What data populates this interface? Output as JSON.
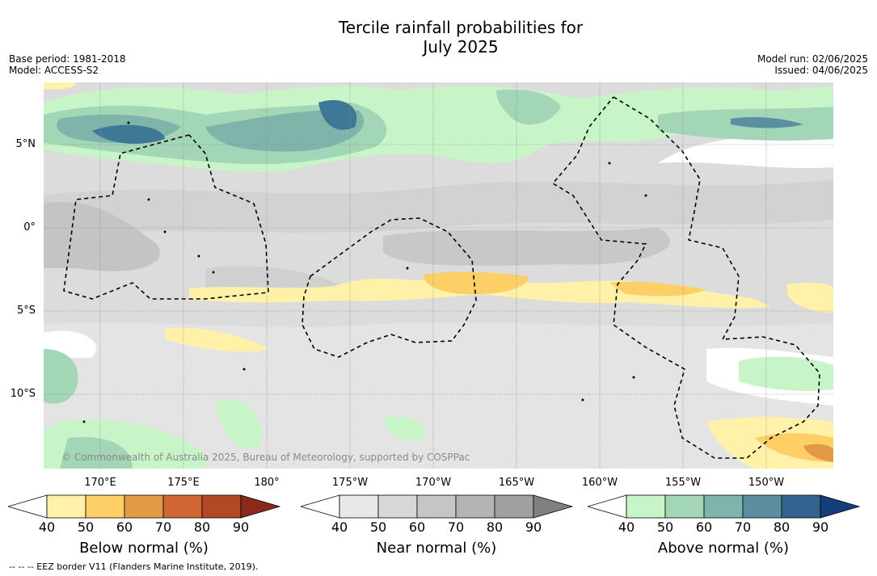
{
  "title_line1": "Tercile rainfall probabilities for",
  "title_line2": "July 2025",
  "base_period": "Base period: 1981-2018",
  "model": "Model: ACCESS-S2",
  "model_run": "Model run: 02/06/2025",
  "issued": "Issued: 04/06/2025",
  "lat_labels": [
    "5°N",
    "0°",
    "5°S",
    "10°S"
  ],
  "lon_labels": [
    "170°E",
    "175°E",
    "180°",
    "175°W",
    "170°W",
    "165°W",
    "160°W",
    "155°W",
    "150°W"
  ],
  "copyright": "© Commonwealth of Australia 2025, Bureau of Meteorology, supported by COSPPac",
  "colorbars": {
    "below": {
      "label": "Below normal (%)",
      "ticks": [
        "40",
        "50",
        "60",
        "70",
        "80",
        "90"
      ],
      "colors": [
        "#fff2a8",
        "#fecf66",
        "#e39a47",
        "#cf6634",
        "#b14a24",
        "#8a2a1a"
      ]
    },
    "near": {
      "label": "Near normal (%)",
      "ticks": [
        "40",
        "50",
        "60",
        "70",
        "80",
        "90"
      ],
      "colors": [
        "#e8e8e8",
        "#d8d8d8",
        "#c6c6c6",
        "#b4b4b4",
        "#a0a0a0",
        "#808080"
      ]
    },
    "above": {
      "label": "Above normal (%)",
      "ticks": [
        "40",
        "50",
        "60",
        "70",
        "80",
        "90"
      ],
      "colors": [
        "#c8f5c8",
        "#a2d6b6",
        "#7fb4aa",
        "#5b8fa0",
        "#33638f",
        "#153f7a"
      ]
    }
  },
  "footer": "--  --  -- EEZ border V11 (Flanders Marine Institute, 2019)."
}
